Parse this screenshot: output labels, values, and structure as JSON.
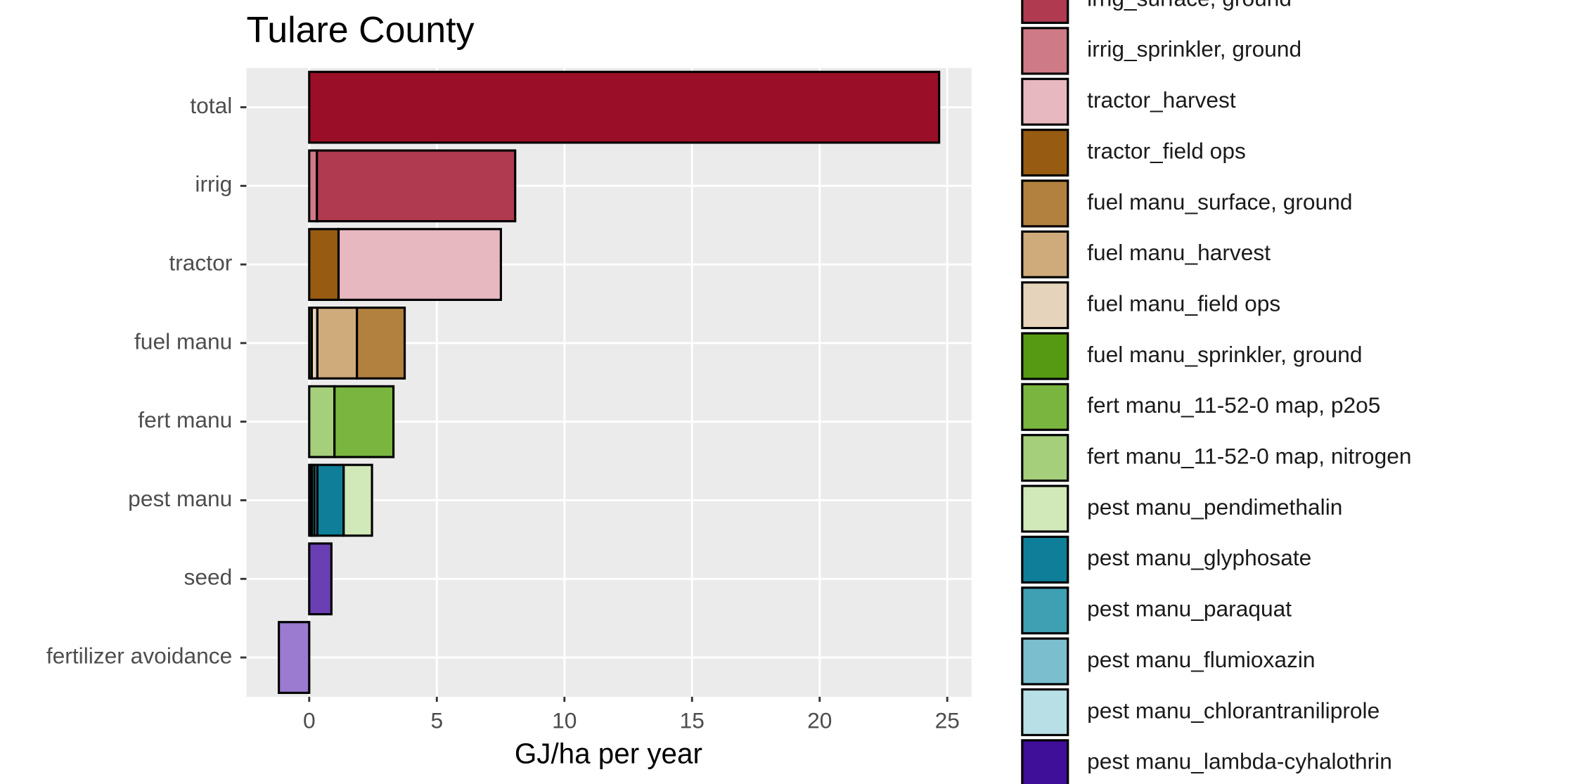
{
  "chart_data": {
    "type": "stacked-bar",
    "orientation": "horizontal",
    "title": "Tulare County",
    "x_label": "GJ/ha per year",
    "categories": [
      "total",
      "irrig",
      "tractor",
      "fuel manu",
      "fert manu",
      "pest manu",
      "seed",
      "fertilizer avoidance"
    ],
    "xlim": [
      -2.46,
      25.95
    ],
    "xticks": [
      0,
      5,
      10,
      15,
      20,
      25
    ],
    "grid": true,
    "legend": "right",
    "series": [
      {
        "color": "#9a0f27",
        "values": [
          24.68,
          null,
          null,
          null,
          null,
          null,
          null,
          null
        ]
      },
      {
        "name": "irrig_surface, ground",
        "color": "#b03a4f",
        "values": [
          null,
          7.77,
          null,
          null,
          null,
          null,
          null,
          null
        ]
      },
      {
        "name": "irrig_sprinkler, ground",
        "color": "#cf7b87",
        "values": [
          null,
          0.3,
          null,
          null,
          null,
          null,
          null,
          null
        ]
      },
      {
        "name": "tractor_harvest",
        "color": "#e8b8c0",
        "values": [
          null,
          null,
          6.36,
          null,
          null,
          null,
          null,
          null
        ]
      },
      {
        "name": "tractor_field ops",
        "color": "#975c12",
        "values": [
          null,
          null,
          1.15,
          null,
          null,
          null,
          null,
          null
        ]
      },
      {
        "name": "fuel manu_surface, ground",
        "color": "#b3813f",
        "values": [
          null,
          null,
          null,
          1.87,
          null,
          null,
          null,
          null
        ]
      },
      {
        "name": "fuel manu_harvest",
        "color": "#cfab7b",
        "values": [
          null,
          null,
          null,
          1.55,
          null,
          null,
          null,
          null
        ]
      },
      {
        "name": "fuel manu_field ops",
        "color": "#e6d3bb",
        "values": [
          null,
          null,
          null,
          0.22,
          null,
          null,
          null,
          null
        ]
      },
      {
        "name": "fuel manu_sprinkler, ground",
        "color": "#559a12",
        "values": [
          null,
          null,
          null,
          0.1,
          null,
          null,
          null,
          null
        ]
      },
      {
        "name": "fert manu_11-52-0 map, p2o5",
        "color": "#7ab63f",
        "values": [
          null,
          null,
          null,
          null,
          2.31,
          null,
          null,
          null
        ]
      },
      {
        "name": "fert manu_11-52-0 map, nitrogen",
        "color": "#a5cf7b",
        "values": [
          null,
          null,
          null,
          null,
          0.99,
          null,
          null,
          null
        ]
      },
      {
        "name": "pest manu_pendimethalin",
        "color": "#d1e8b8",
        "values": [
          null,
          null,
          null,
          null,
          null,
          1.11,
          null,
          null
        ]
      },
      {
        "name": "pest manu_glyphosate",
        "color": "#0f7f99",
        "values": [
          null,
          null,
          null,
          null,
          null,
          1.03,
          null,
          null
        ]
      },
      {
        "name": "pest manu_paraquat",
        "color": "#3f9fb3",
        "values": [
          null,
          null,
          null,
          null,
          null,
          0.12,
          null,
          null
        ]
      },
      {
        "name": "pest manu_flumioxazin",
        "color": "#7bbfcf",
        "values": [
          null,
          null,
          null,
          null,
          null,
          0.1,
          null,
          null
        ]
      },
      {
        "name": "pest manu_chlorantraniliprole",
        "color": "#b8dfe6",
        "values": [
          null,
          null,
          null,
          null,
          null,
          0.05,
          null,
          null
        ]
      },
      {
        "name": "pest manu_lambda-cyhalothrin",
        "color": "#3f0f99",
        "values": [
          null,
          null,
          null,
          null,
          null,
          0.05,
          null,
          null
        ]
      },
      {
        "color": "#6a3fb3",
        "values": [
          null,
          null,
          null,
          null,
          null,
          null,
          0.87,
          null
        ]
      },
      {
        "color": "#9a7bcf",
        "values": [
          null,
          null,
          null,
          null,
          null,
          null,
          null,
          -1.19
        ]
      }
    ]
  }
}
